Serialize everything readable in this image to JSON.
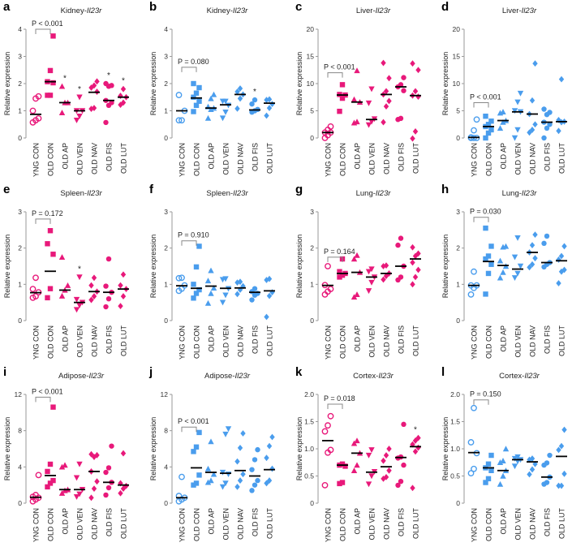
{
  "colors": {
    "pink": "#e8197a",
    "blue": "#4a9ded",
    "median": "#000000",
    "axis": "#9a9a9a"
  },
  "y_axis_label": "Relative expression",
  "categories": [
    "YNG CON",
    "OLD CON",
    "OLD AP",
    "OLD VEN",
    "OLD NAV",
    "OLD FIS",
    "OLD LUT"
  ],
  "markers": [
    "circle-open",
    "square",
    "triangle-up",
    "triangle-down",
    "diamond",
    "circle",
    "diamond"
  ],
  "chart_data": [
    {
      "type": "scatter",
      "letter": "a",
      "organ": "Kidney-",
      "gene": "Il23r",
      "color": "pink",
      "ylim": [
        0,
        4
      ],
      "yticks": [
        "0",
        "1",
        "2",
        "3",
        "4"
      ],
      "pvalue": "P < 0.001",
      "bracket_y": 4.0,
      "groups": [
        {
          "values": [
            0.57,
            0.65,
            0.72,
            1.0,
            1.45,
            1.53
          ],
          "median": 0.87
        },
        {
          "values": [
            1.57,
            1.57,
            2.03,
            2.07,
            2.48,
            3.75
          ],
          "median": 2.07
        },
        {
          "values": [
            0.93,
            1.3,
            1.3,
            1.9
          ],
          "median": 1.3,
          "star": "*"
        },
        {
          "values": [
            0.65,
            0.8,
            1.0,
            1.0,
            1.5
          ],
          "median": 1.0,
          "star": "*"
        },
        {
          "values": [
            1.07,
            1.1,
            1.7,
            1.85,
            1.93,
            2.08
          ],
          "median": 1.68
        },
        {
          "values": [
            0.57,
            1.2,
            1.3,
            1.38,
            1.9,
            1.93,
            2.0
          ],
          "median": 1.38,
          "star": "*"
        },
        {
          "values": [
            1.22,
            1.3,
            1.5,
            1.55,
            1.8
          ],
          "median": 1.5,
          "star": "*"
        }
      ]
    },
    {
      "type": "scatter",
      "letter": "b",
      "organ": "Kidney-",
      "gene": "Il23r",
      "color": "blue",
      "ylim": [
        0,
        4
      ],
      "yticks": [
        "0",
        "1",
        "2",
        "3",
        "4"
      ],
      "pvalue": "P = 0.080",
      "bracket_y": 2.6,
      "groups": [
        {
          "values": [
            0.65,
            0.65,
            1.0,
            1.58
          ],
          "median": 1.0
        },
        {
          "values": [
            0.97,
            1.2,
            1.35,
            1.5,
            1.65,
            1.85,
            2.0
          ],
          "median": 1.47
        },
        {
          "values": [
            0.73,
            1.05,
            1.1,
            1.15,
            1.45,
            1.6
          ],
          "median": 1.1
        },
        {
          "values": [
            0.73,
            0.95,
            1.2,
            1.35,
            1.35
          ],
          "median": 1.22
        },
        {
          "values": [
            1.08,
            1.45,
            1.6,
            1.7,
            1.82
          ],
          "median": 1.6
        },
        {
          "values": [
            0.95,
            1.0,
            1.05,
            1.25,
            1.4
          ],
          "median": 1.03,
          "star": "*"
        },
        {
          "values": [
            0.82,
            1.1,
            1.25,
            1.4,
            1.42
          ],
          "median": 1.28
        }
      ]
    },
    {
      "type": "scatter",
      "letter": "c",
      "organ": "Liver-",
      "gene": "Il23r",
      "color": "pink",
      "ylim": [
        0,
        20
      ],
      "yticks": [
        "0",
        "5",
        "10",
        "15",
        "20"
      ],
      "pvalue": "P < 0.001",
      "bracket_y": 12,
      "groups": [
        {
          "values": [
            0,
            0.5,
            1,
            1,
            1.5,
            2.1
          ],
          "median": 1
        },
        {
          "values": [
            4.9,
            7.3,
            7.9,
            8,
            9.8
          ],
          "median": 7.9
        },
        {
          "values": [
            2.8,
            3,
            6.6,
            7.1,
            12.4
          ],
          "median": 6.6
        },
        {
          "values": [
            2.4,
            3,
            3.5,
            6.4,
            9
          ],
          "median": 3.4
        },
        {
          "values": [
            2.9,
            5.8,
            6.8,
            8,
            8.6,
            11,
            13.8
          ],
          "median": 8
        },
        {
          "values": [
            3.4,
            3.6,
            8.7,
            9.4,
            9.8,
            11.1
          ],
          "median": 9.4
        },
        {
          "values": [
            -0.1,
            1.2,
            7.6,
            7.8,
            8.6,
            12.5,
            13.7
          ],
          "median": 7.8
        }
      ]
    },
    {
      "type": "scatter",
      "letter": "d",
      "organ": "Liver-",
      "gene": "Il23r",
      "color": "blue",
      "ylim": [
        0,
        20
      ],
      "yticks": [
        "0",
        "5",
        "10",
        "15",
        "20"
      ],
      "pvalue": "P < 0.001",
      "bracket_y": 6.5,
      "groups": [
        {
          "values": [
            0,
            0,
            0,
            0.1,
            1.4,
            3.4
          ],
          "median": 0.1
        },
        {
          "values": [
            0,
            0.9,
            1.5,
            2.1,
            2.5,
            3.1,
            4
          ],
          "median": 2.1
        },
        {
          "values": [
            1.8,
            2.9,
            3.2,
            4.6,
            4.8
          ],
          "median": 3.2
        },
        {
          "values": [
            0,
            1.5,
            4.8,
            5,
            6.6,
            8.2
          ],
          "median": 4.8
        },
        {
          "values": [
            1,
            1.5,
            2.5,
            4.4,
            6.9,
            13.7
          ],
          "median": 4.4
        },
        {
          "values": [
            0,
            1.8,
            2.5,
            2.9,
            4.3,
            4.7,
            5.3
          ],
          "median": 2.9
        },
        {
          "values": [
            1.3,
            2.9,
            3,
            3.3,
            10.8
          ],
          "median": 3.0
        }
      ]
    },
    {
      "type": "scatter",
      "letter": "e",
      "organ": "Spleen-",
      "gene": "Il23r",
      "color": "pink",
      "ylim": [
        0,
        3
      ],
      "yticks": [
        "0",
        "1",
        "2",
        "3"
      ],
      "pvalue": "P = 0.172",
      "bracket_y": 2.8,
      "groups": [
        {
          "values": [
            0.63,
            0.67,
            0.78,
            0.87,
            1.18
          ],
          "median": 0.77
        },
        {
          "values": [
            0.63,
            0.88,
            1.83,
            2.12,
            2.48
          ],
          "median": 1.36
        },
        {
          "values": [
            0.68,
            0.84,
            0.97,
            1.75
          ],
          "median": 0.84
        },
        {
          "values": [
            0.3,
            0.42,
            0.5,
            0.58,
            1.2
          ],
          "median": 0.5,
          "star": "*"
        },
        {
          "values": [
            0.57,
            0.67,
            0.8,
            0.97,
            1.18
          ],
          "median": 0.8
        },
        {
          "values": [
            0.38,
            0.6,
            0.78,
            0.95,
            1.7
          ],
          "median": 0.78
        },
        {
          "values": [
            0.4,
            0.67,
            0.87,
            0.97,
            1.27
          ],
          "median": 0.87
        }
      ]
    },
    {
      "type": "scatter",
      "letter": "f",
      "organ": "Spleen-",
      "gene": "Il23r",
      "color": "blue",
      "ylim": [
        0,
        3
      ],
      "yticks": [
        "0",
        "1",
        "2",
        "3"
      ],
      "pvalue": "P = 0.910",
      "bracket_y": 2.2,
      "groups": [
        {
          "values": [
            0.82,
            0.88,
            0.97,
            1.17,
            1.18
          ],
          "median": 0.96
        },
        {
          "values": [
            0.62,
            0.75,
            0.85,
            1.0,
            1.48,
            2.05
          ],
          "median": 0.89
        },
        {
          "values": [
            0.48,
            0.75,
            0.9,
            1.1,
            1.38
          ],
          "median": 0.95
        },
        {
          "values": [
            0.5,
            0.7,
            0.88,
            1.13,
            1.15
          ],
          "median": 0.89
        },
        {
          "values": [
            0.73,
            0.85,
            0.95,
            1.05,
            1.07
          ],
          "median": 0.9
        },
        {
          "values": [
            0.57,
            0.7,
            0.75,
            0.8,
            0.88
          ],
          "median": 0.78
        },
        {
          "values": [
            0.1,
            0.68,
            0.78,
            1.12,
            1.15
          ],
          "median": 0.82
        }
      ]
    },
    {
      "type": "scatter",
      "letter": "g",
      "organ": "Lung-",
      "gene": "Il23r",
      "color": "pink",
      "ylim": [
        0,
        3
      ],
      "yticks": [
        "0",
        "1",
        "2",
        "3"
      ],
      "pvalue": "P = 0.164",
      "bracket_y": 1.75,
      "groups": [
        {
          "values": [
            0.72,
            0.8,
            0.87,
            0.98,
            1.5
          ],
          "median": 0.97
        },
        {
          "values": [
            1.2,
            1.25,
            1.3,
            1.35,
            1.7
          ],
          "median": 1.3
        },
        {
          "values": [
            0.65,
            0.72,
            1.33,
            1.7,
            1.8
          ],
          "median": 1.33
        },
        {
          "values": [
            0.82,
            1.05,
            1.2,
            1.35,
            1.42
          ],
          "median": 1.2
        },
        {
          "values": [
            1.13,
            1.23,
            1.3,
            1.5,
            1.52
          ],
          "median": 1.3
        },
        {
          "values": [
            1.12,
            1.2,
            1.5,
            2.08,
            2.27
          ],
          "median": 1.5
        },
        {
          "values": [
            1.0,
            1.2,
            1.4,
            1.6,
            1.78,
            1.85,
            2.02
          ],
          "median": 1.7
        }
      ]
    },
    {
      "type": "scatter",
      "letter": "h",
      "organ": "Lung-",
      "gene": "Il23r",
      "color": "blue",
      "ylim": [
        0,
        3
      ],
      "yticks": [
        "0",
        "1",
        "2",
        "3"
      ],
      "pvalue": "P = 0.030",
      "bracket_y": 2.85,
      "groups": [
        {
          "values": [
            0.72,
            0.9,
            0.97,
            0.97,
            1.35
          ],
          "median": 0.97
        },
        {
          "values": [
            0.73,
            1.3,
            1.55,
            1.7,
            1.78,
            2.05,
            2.55
          ],
          "median": 1.63
        },
        {
          "values": [
            1.18,
            1.33,
            1.5,
            1.65,
            2.03,
            2.05
          ],
          "median": 1.52
        },
        {
          "values": [
            1.18,
            1.3,
            1.5,
            1.75,
            2.28
          ],
          "median": 1.42
        },
        {
          "values": [
            1.47,
            1.55,
            1.72,
            1.88,
            2.08,
            2.37
          ],
          "median": 1.88
        },
        {
          "values": [
            1.48,
            1.55,
            1.6,
            2.13,
            2.33
          ],
          "median": 1.6
        },
        {
          "values": [
            1.03,
            1.35,
            1.4,
            1.68,
            1.78,
            2.05
          ],
          "median": 1.65
        }
      ]
    },
    {
      "type": "scatter",
      "letter": "i",
      "organ": "Adipose-",
      "gene": "Il23r",
      "color": "pink",
      "ylim": [
        0,
        12
      ],
      "yticks": [
        "0",
        "4",
        "8",
        "12"
      ],
      "pvalue": "P < 0.001",
      "bracket_y": 11.7,
      "groups": [
        {
          "values": [
            0.2,
            0.4,
            0.6,
            0.7,
            0.9,
            3.1
          ],
          "median": 0.65
        },
        {
          "values": [
            1.8,
            2.2,
            2.5,
            3.5,
            4.3,
            10.6
          ],
          "median": 3.05
        },
        {
          "values": [
            1.1,
            1.4,
            1.5,
            4.0,
            4.2
          ],
          "median": 1.5
        },
        {
          "values": [
            0.7,
            1.0,
            1.5,
            2.8,
            4.3
          ],
          "median": 1.5
        },
        {
          "values": [
            0.6,
            1.6,
            2.4,
            3.5,
            5.1,
            5.3,
            5.4
          ],
          "median": 3.5
        },
        {
          "values": [
            0.9,
            1.7,
            2.3,
            3.4,
            3.9,
            6.3
          ],
          "median": 2.3
        },
        {
          "values": [
            1.1,
            1.6,
            1.9,
            2.2,
            5.5
          ],
          "median": 2.0
        }
      ]
    },
    {
      "type": "scatter",
      "letter": "j",
      "organ": "Adipose-",
      "gene": "Il23r",
      "color": "blue",
      "ylim": [
        0,
        12
      ],
      "yticks": [
        "0",
        "4",
        "8",
        "12"
      ],
      "pvalue": "P < 0.001",
      "bracket_y": 8.4,
      "groups": [
        {
          "values": [
            0.2,
            0.4,
            0.6,
            0.8,
            2.9
          ],
          "median": 0.6
        },
        {
          "values": [
            2.0,
            2.2,
            3.1,
            5.7,
            6.2,
            7.8
          ],
          "median": 3.9
        },
        {
          "values": [
            2.3,
            2.5,
            3.2,
            3.8,
            6.8
          ],
          "median": 3.4
        },
        {
          "values": [
            1.8,
            2.2,
            3.2,
            3.4,
            7.6,
            8.2
          ],
          "median": 3.3
        },
        {
          "values": [
            1.8,
            2.5,
            3.2,
            4.6,
            6.1,
            7.7
          ],
          "median": 3.6
        },
        {
          "values": [
            1.4,
            2.0,
            2.5,
            3.7,
            4.8,
            5.9
          ],
          "median": 3.0
        },
        {
          "values": [
            2.2,
            2.5,
            3.8,
            5.0,
            6.3,
            7.3
          ],
          "median": 3.7
        }
      ]
    },
    {
      "type": "scatter",
      "letter": "k",
      "organ": "Cortex-",
      "gene": "Il23r",
      "color": "pink",
      "ylim": [
        0,
        2
      ],
      "yticks": [
        "0",
        "0.5",
        "1.0",
        "1.5",
        "2.0"
      ],
      "pvalue": "P = 0.018",
      "bracket_y": 1.82,
      "groups": [
        {
          "values": [
            0.33,
            0.93,
            0.98,
            1.32,
            1.43,
            1.6
          ],
          "median": 1.15
        },
        {
          "values": [
            0.36,
            0.38,
            0.68,
            0.7,
            0.72
          ],
          "median": 0.7
        },
        {
          "values": [
            0.6,
            0.7,
            0.92,
            1.1,
            1.15
          ],
          "median": 0.92
        },
        {
          "values": [
            0.35,
            0.5,
            0.58,
            0.88,
            0.98
          ],
          "median": 0.57
        },
        {
          "values": [
            0.45,
            0.48,
            0.6,
            0.78,
            0.88,
            1.0
          ],
          "median": 0.67
        },
        {
          "values": [
            0.33,
            0.4,
            0.7,
            0.83,
            0.85,
            1.45
          ],
          "median": 0.84
        },
        {
          "values": [
            0.28,
            0.95,
            1.02,
            1.08,
            1.15,
            1.2
          ],
          "median": 1.04,
          "star": "*"
        }
      ]
    },
    {
      "type": "scatter",
      "letter": "l",
      "organ": "Cortex-",
      "gene": "Il23r",
      "color": "blue",
      "ylim": [
        0,
        2
      ],
      "yticks": [
        "0",
        "0.5",
        "1.0",
        "1.5",
        "2.0"
      ],
      "pvalue": "P = 0.150",
      "bracket_y": 1.9,
      "groups": [
        {
          "values": [
            0.55,
            0.63,
            0.92,
            1.12,
            1.75
          ],
          "median": 0.93
        },
        {
          "values": [
            0.38,
            0.45,
            0.6,
            0.65,
            0.72,
            0.88
          ],
          "median": 0.65
        },
        {
          "values": [
            0.35,
            0.5,
            0.6,
            0.75,
            0.78,
            1.0
          ],
          "median": 0.6
        },
        {
          "values": [
            0.68,
            0.77,
            0.8,
            0.82,
            0.85
          ],
          "median": 0.8
        },
        {
          "values": [
            0.53,
            0.62,
            0.72,
            0.8,
            0.82
          ],
          "median": 0.76
        },
        {
          "values": [
            0.35,
            0.38,
            0.48,
            0.7,
            0.74,
            0.88
          ],
          "median": 0.48
        },
        {
          "values": [
            0.32,
            0.32,
            0.54,
            0.98,
            1.05,
            1.35
          ],
          "median": 0.86
        }
      ]
    }
  ]
}
